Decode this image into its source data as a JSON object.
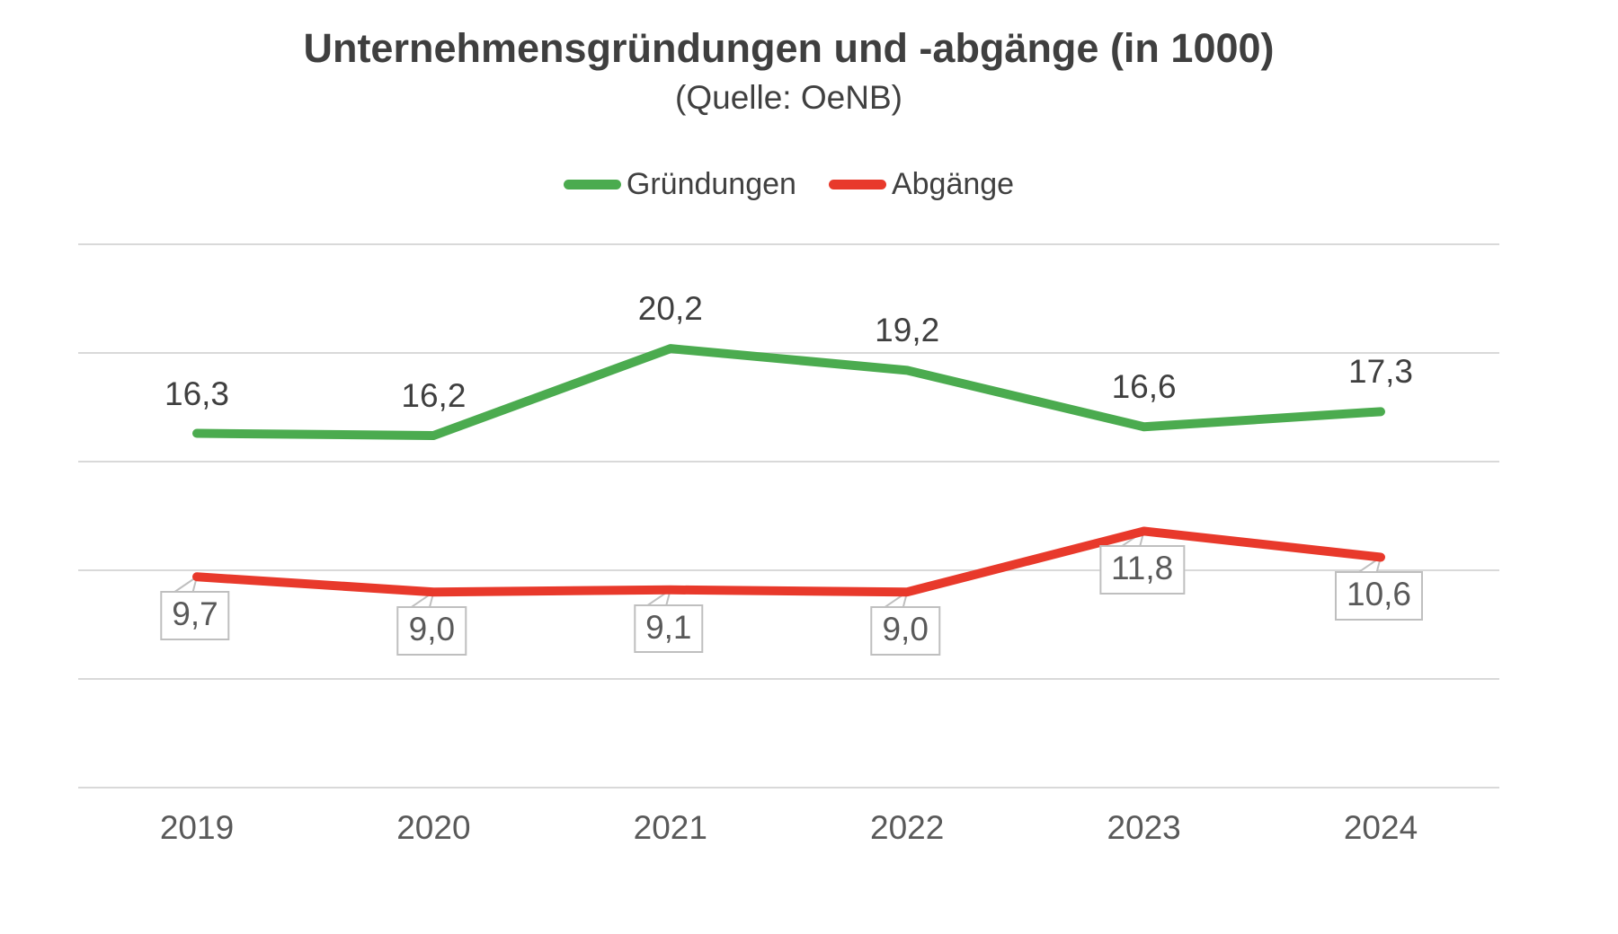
{
  "title": "Unternehmensgründungen und -abgänge (in 1000)",
  "subtitle": "(Quelle: OeNB)",
  "legend": [
    {
      "label": "Gründungen",
      "color": "#4bab4f"
    },
    {
      "label": "Abgänge",
      "color": "#e8392b"
    }
  ],
  "colors": {
    "gruendungen": "#4bab4f",
    "abgaenge": "#e8392b",
    "gridline": "#d9d9d9",
    "callout_border": "#bfbfbf",
    "title_text": "#3f3f3f",
    "axis_text": "#595959"
  },
  "chart_data": {
    "type": "line",
    "categories": [
      "2019",
      "2020",
      "2021",
      "2022",
      "2023",
      "2024"
    ],
    "series": [
      {
        "name": "Gründungen",
        "color": "#4bab4f",
        "values": [
          16.3,
          16.2,
          20.2,
          19.2,
          16.6,
          17.3
        ],
        "labels": [
          "16,3",
          "16,2",
          "20,2",
          "19,2",
          "16,6",
          "17,3"
        ],
        "label_style": "plain-above"
      },
      {
        "name": "Abgänge",
        "color": "#e8392b",
        "values": [
          9.7,
          9.0,
          9.1,
          9.0,
          11.8,
          10.6
        ],
        "labels": [
          "9,7",
          "9,0",
          "9,1",
          "9,0",
          "11,8",
          "10,6"
        ],
        "label_style": "callout-below"
      }
    ],
    "title": "Unternehmensgründungen und -abgänge (in 1000)",
    "subtitle": "(Quelle: OeNB)",
    "xlabel": "",
    "ylabel": "",
    "ylim": [
      0,
      25
    ],
    "gridline_step": 5,
    "grid": true,
    "y_axis_labels_visible": false,
    "legend_position": "top"
  }
}
